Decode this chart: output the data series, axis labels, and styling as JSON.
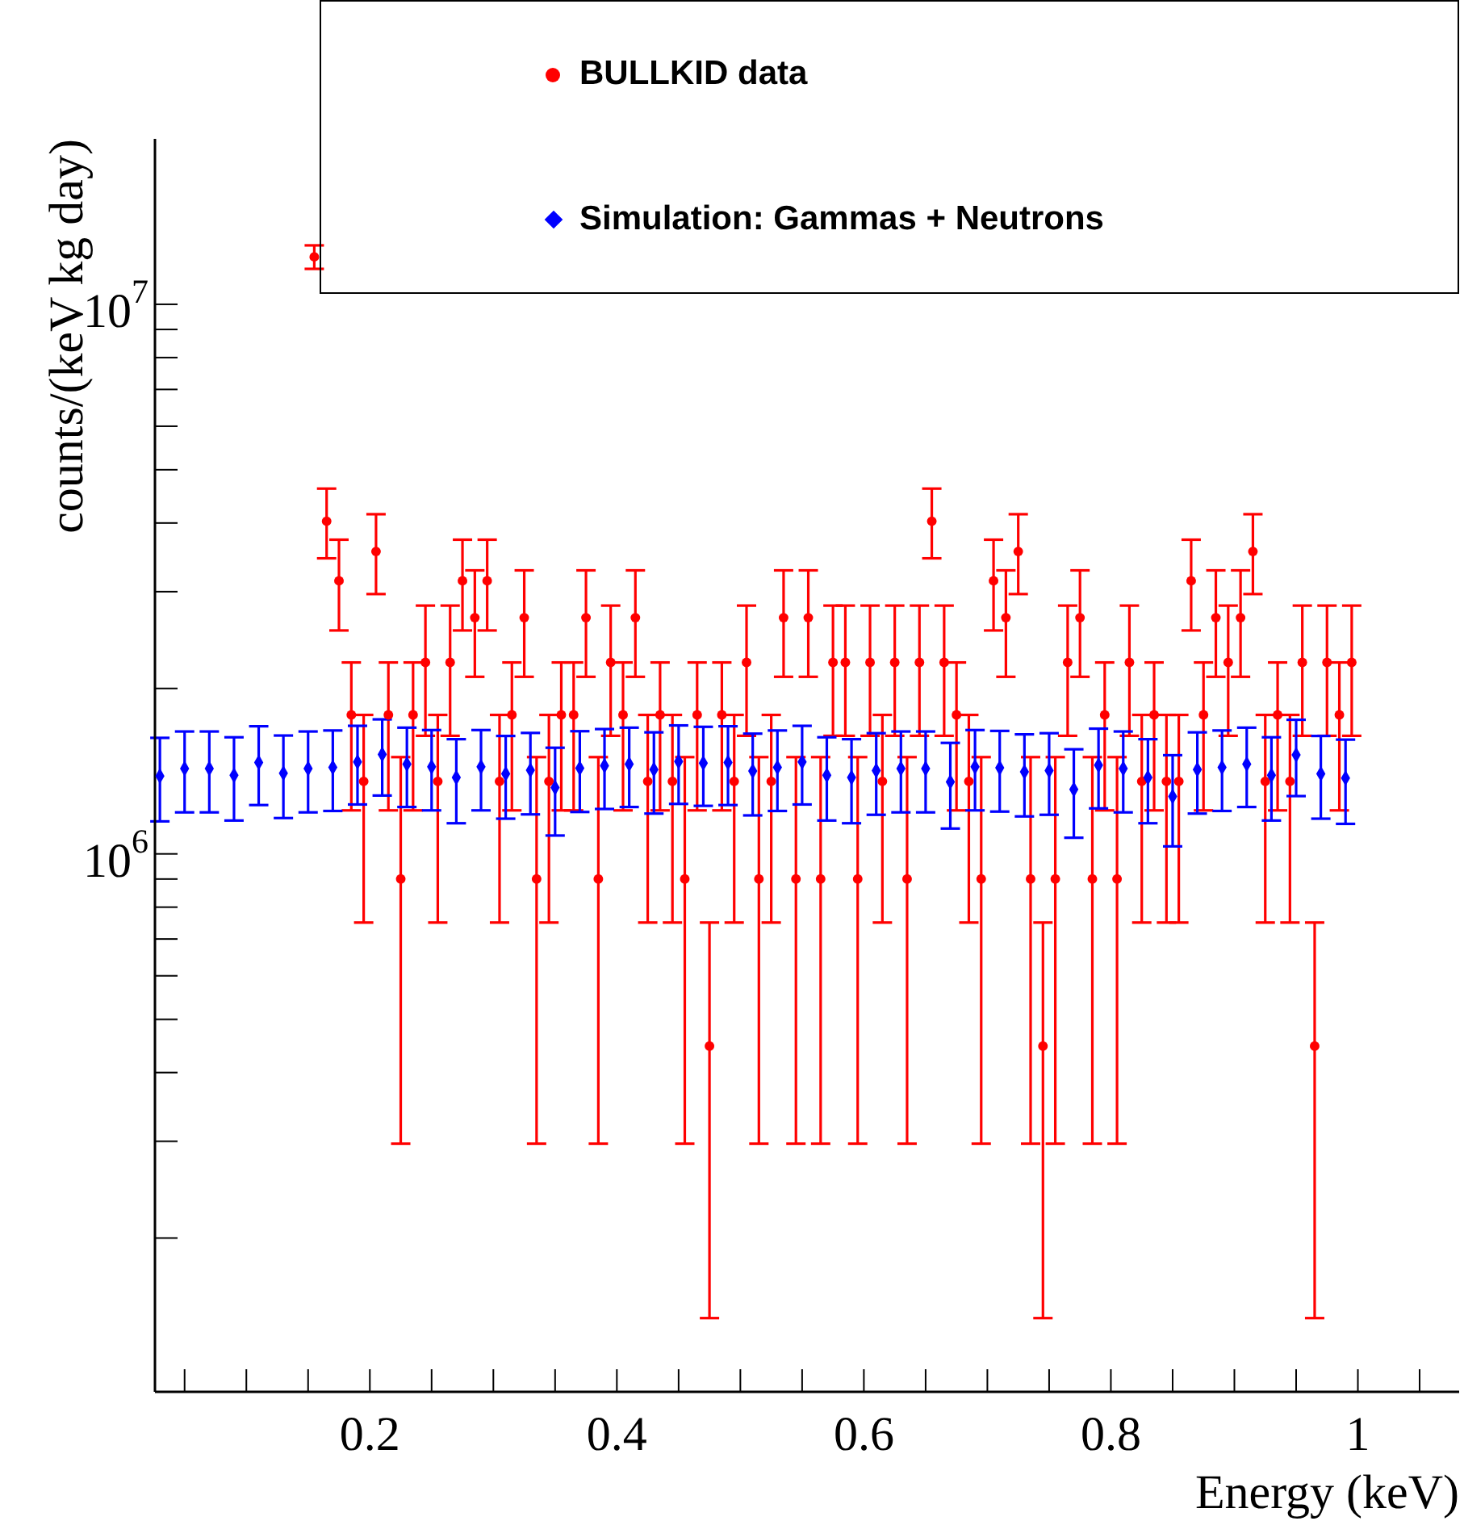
{
  "chart_data": {
    "type": "scatter",
    "xlabel": "Energy (keV)",
    "ylabel": "counts/(keV kg day)",
    "log": "y",
    "legend": "top right",
    "xlim": [
      0.026,
      1.082
    ],
    "xticks": [
      {
        "value": 0.05,
        "label": null
      },
      {
        "value": 0.1,
        "label": null
      },
      {
        "value": 0.15,
        "label": null
      },
      0.2,
      {
        "value": 0.25,
        "label": null
      },
      {
        "value": 0.3,
        "label": null
      },
      {
        "value": 0.35,
        "label": null
      },
      0.4,
      {
        "value": 0.45,
        "label": null
      },
      {
        "value": 0.5,
        "label": null
      },
      {
        "value": 0.55,
        "label": null
      },
      0.6,
      {
        "value": 0.65,
        "label": null
      },
      {
        "value": 0.7,
        "label": null
      },
      {
        "value": 0.75,
        "label": null
      },
      0.8,
      {
        "value": 0.85,
        "label": null
      },
      {
        "value": 0.9,
        "label": null
      },
      {
        "value": 0.95,
        "label": null
      },
      1,
      {
        "value": 1.05,
        "label": null
      }
    ],
    "ylim": [
      105000,
      20000000
    ],
    "yticks": [
      {
        "value": 200000,
        "label": null
      },
      {
        "value": 300000,
        "label": null
      },
      {
        "value": 400000,
        "label": null
      },
      {
        "value": 500000,
        "label": null
      },
      {
        "value": 600000,
        "label": null
      },
      {
        "value": 700000,
        "label": null
      },
      {
        "value": 800000,
        "label": null
      },
      {
        "value": 900000,
        "label": null
      },
      {
        "value": 1000000,
        "label": "10$^{6}$"
      },
      {
        "value": 2000000,
        "label": null
      },
      {
        "value": 3000000,
        "label": null
      },
      {
        "value": 4000000,
        "label": null
      },
      {
        "value": 5000000,
        "label": null
      },
      {
        "value": 6000000,
        "label": null
      },
      {
        "value": 7000000,
        "label": null
      },
      {
        "value": 8000000,
        "label": null
      },
      {
        "value": 9000000,
        "label": null
      },
      {
        "value": 10000000,
        "label": "10$^{7}$"
      }
    ],
    "series": [
      {
        "name": "BULLKID data",
        "color": "#ff0000",
        "marker": "circle",
        "x": [
          0.155,
          0.165,
          0.175,
          0.185,
          0.195,
          0.205,
          0.215,
          0.225,
          0.235,
          0.245,
          0.255,
          0.265,
          0.275,
          0.285,
          0.295,
          0.305,
          0.315,
          0.325,
          0.335,
          0.345,
          0.355,
          0.365,
          0.375,
          0.385,
          0.395,
          0.405,
          0.415,
          0.425,
          0.435,
          0.445,
          0.455,
          0.465,
          0.475,
          0.485,
          0.495,
          0.505,
          0.515,
          0.525,
          0.535,
          0.545,
          0.555,
          0.565,
          0.575,
          0.585,
          0.595,
          0.605,
          0.615,
          0.625,
          0.635,
          0.645,
          0.655,
          0.665,
          0.675,
          0.685,
          0.695,
          0.705,
          0.715,
          0.725,
          0.735,
          0.745,
          0.755,
          0.765,
          0.775,
          0.785,
          0.795,
          0.805,
          0.815,
          0.825,
          0.835,
          0.845,
          0.855,
          0.865,
          0.875,
          0.885,
          0.895,
          0.905,
          0.915,
          0.925,
          0.935,
          0.945,
          0.955,
          0.965,
          0.975,
          0.985,
          0.995
        ],
        "values": [
          12200000,
          4030000,
          3140000,
          1790000,
          1355000,
          3550000,
          1790000,
          900000,
          1790000,
          2230000,
          1355000,
          2230000,
          3140000,
          2690000,
          3140000,
          1355000,
          1790000,
          2690000,
          900000,
          1355000,
          1790000,
          1790000,
          2690000,
          900000,
          2230000,
          1790000,
          2690000,
          1355000,
          1790000,
          1355000,
          900000,
          1790000,
          447000,
          1790000,
          1355000,
          2230000,
          900000,
          1355000,
          2690000,
          900000,
          2690000,
          900000,
          2230000,
          2230000,
          900000,
          2230000,
          1355000,
          2230000,
          900000,
          2230000,
          4030000,
          2230000,
          1790000,
          1355000,
          900000,
          3140000,
          2690000,
          3550000,
          900000,
          447000,
          900000,
          2230000,
          2690000,
          900000,
          1790000,
          900000,
          2230000,
          1355000,
          1790000,
          1355000,
          1355000,
          3140000,
          1790000,
          2690000,
          2230000,
          2690000,
          3550000,
          1355000,
          1790000,
          1355000,
          2230000,
          447000,
          2230000,
          1790000,
          2230000
        ],
        "errors": [
          [
            11600000,
            12800000
          ],
          [
            3450000,
            4620000
          ],
          [
            2550000,
            3730000
          ],
          [
            1200000,
            2230000
          ],
          [
            750000,
            1790000
          ],
          [
            2970000,
            4150000
          ],
          [
            1200000,
            2230000
          ],
          [
            297000,
            1500000
          ],
          [
            1200000,
            2230000
          ],
          [
            1640000,
            2830000
          ],
          [
            750000,
            1790000
          ],
          [
            1640000,
            2830000
          ],
          [
            2550000,
            3730000
          ],
          [
            2100000,
            3280000
          ],
          [
            2550000,
            3730000
          ],
          [
            750000,
            1790000
          ],
          [
            1200000,
            2230000
          ],
          [
            2100000,
            3280000
          ],
          [
            297000,
            1500000
          ],
          [
            750000,
            1790000
          ],
          [
            1200000,
            2230000
          ],
          [
            1200000,
            2230000
          ],
          [
            2100000,
            3280000
          ],
          [
            297000,
            1500000
          ],
          [
            1640000,
            2830000
          ],
          [
            1200000,
            2230000
          ],
          [
            2100000,
            3280000
          ],
          [
            750000,
            1790000
          ],
          [
            1200000,
            2230000
          ],
          [
            750000,
            1790000
          ],
          [
            297000,
            1500000
          ],
          [
            1200000,
            2230000
          ],
          [
            143000,
            750000
          ],
          [
            1200000,
            2230000
          ],
          [
            750000,
            1790000
          ],
          [
            1640000,
            2830000
          ],
          [
            297000,
            1500000
          ],
          [
            750000,
            1790000
          ],
          [
            2100000,
            3280000
          ],
          [
            297000,
            1500000
          ],
          [
            2100000,
            3280000
          ],
          [
            297000,
            1500000
          ],
          [
            1640000,
            2830000
          ],
          [
            1640000,
            2830000
          ],
          [
            297000,
            1500000
          ],
          [
            1640000,
            2830000
          ],
          [
            750000,
            1790000
          ],
          [
            1640000,
            2830000
          ],
          [
            297000,
            1500000
          ],
          [
            1640000,
            2830000
          ],
          [
            3450000,
            4620000
          ],
          [
            1640000,
            2830000
          ],
          [
            1200000,
            2230000
          ],
          [
            750000,
            1790000
          ],
          [
            297000,
            1500000
          ],
          [
            2550000,
            3730000
          ],
          [
            2100000,
            3280000
          ],
          [
            2970000,
            4150000
          ],
          [
            297000,
            1500000
          ],
          [
            143000,
            750000
          ],
          [
            297000,
            1500000
          ],
          [
            1640000,
            2830000
          ],
          [
            2100000,
            3280000
          ],
          [
            297000,
            1500000
          ],
          [
            1200000,
            2230000
          ],
          [
            297000,
            1500000
          ],
          [
            1640000,
            2830000
          ],
          [
            750000,
            1790000
          ],
          [
            1200000,
            2230000
          ],
          [
            750000,
            1790000
          ],
          [
            750000,
            1790000
          ],
          [
            2550000,
            3730000
          ],
          [
            1200000,
            2230000
          ],
          [
            2100000,
            3280000
          ],
          [
            1640000,
            2830000
          ],
          [
            2100000,
            3280000
          ],
          [
            2970000,
            4150000
          ],
          [
            750000,
            1790000
          ],
          [
            1200000,
            2230000
          ],
          [
            750000,
            1790000
          ],
          [
            1640000,
            2830000
          ],
          [
            143000,
            750000
          ],
          [
            1640000,
            2830000
          ],
          [
            1200000,
            2230000
          ],
          [
            1640000,
            2830000
          ]
        ]
      },
      {
        "name": "Simulation: Gammas + Neutrons",
        "color": "#0000ff",
        "marker": "diamond",
        "x": [
          0.03,
          0.05,
          0.07,
          0.09,
          0.11,
          0.13,
          0.15,
          0.17,
          0.19,
          0.21,
          0.23,
          0.25,
          0.27,
          0.29,
          0.31,
          0.33,
          0.35,
          0.37,
          0.39,
          0.41,
          0.43,
          0.45,
          0.47,
          0.49,
          0.51,
          0.53,
          0.55,
          0.57,
          0.59,
          0.61,
          0.63,
          0.65,
          0.67,
          0.69,
          0.71,
          0.73,
          0.75,
          0.77,
          0.79,
          0.81,
          0.83,
          0.85,
          0.87,
          0.89,
          0.91,
          0.93,
          0.95,
          0.97,
          0.99
        ],
        "values": [
          1386000,
          1430000,
          1430000,
          1390000,
          1467000,
          1402000,
          1430000,
          1437000,
          1470000,
          1517000,
          1457000,
          1440000,
          1377000,
          1440000,
          1399000,
          1420000,
          1320000,
          1432000,
          1447000,
          1457000,
          1424000,
          1473000,
          1463000,
          1467000,
          1415000,
          1437000,
          1470000,
          1390000,
          1377000,
          1418000,
          1430000,
          1430000,
          1352000,
          1440000,
          1434000,
          1410000,
          1418000,
          1310000,
          1450000,
          1430000,
          1377000,
          1272000,
          1424000,
          1437000,
          1457000,
          1390000,
          1514000,
          1399000,
          1374000
        ],
        "errors": [
          240000,
          240000,
          240000,
          240000,
          240000,
          240000,
          240000,
          240000,
          240000,
          240000,
          240000,
          240000,
          240000,
          240000,
          240000,
          240000,
          240000,
          240000,
          240000,
          240000,
          240000,
          240000,
          240000,
          240000,
          240000,
          240000,
          240000,
          240000,
          240000,
          240000,
          240000,
          240000,
          240000,
          240000,
          240000,
          240000,
          240000,
          240000,
          240000,
          240000,
          240000,
          240000,
          240000,
          240000,
          240000,
          240000,
          240000,
          240000,
          240000
        ]
      }
    ]
  }
}
